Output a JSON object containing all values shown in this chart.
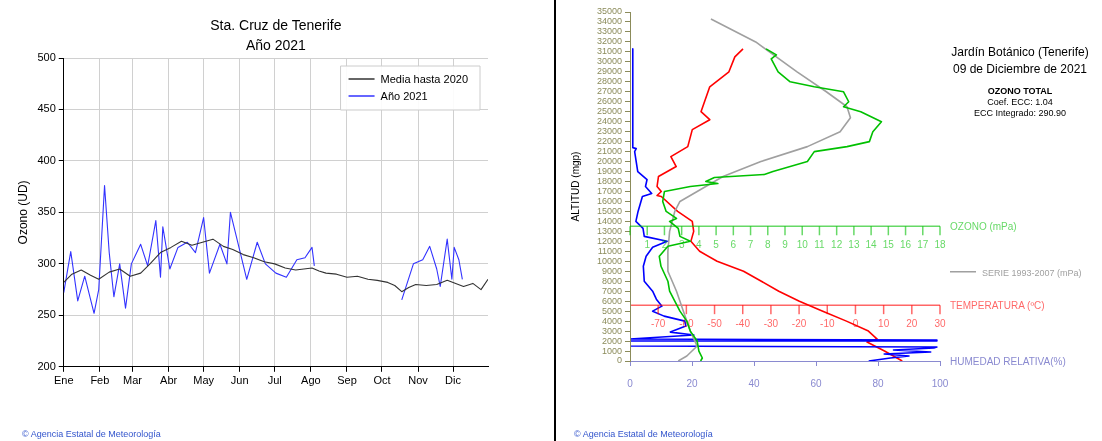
{
  "chart_data": [
    {
      "type": "line",
      "title": "Sta. Cruz de Tenerife",
      "subtitle": "Año 2021",
      "ylabel": "Ozono (UD)",
      "xlim": [
        "--01-01",
        "--12-31"
      ],
      "xticks": [
        {
          "value": "--01-01",
          "label": "Ene"
        },
        {
          "value": "--02-01",
          "label": "Feb"
        },
        {
          "value": "--03-01",
          "label": "Mar"
        },
        {
          "value": "--04-01",
          "label": "Abr"
        },
        {
          "value": "--05-01",
          "label": "May"
        },
        {
          "value": "--06-01",
          "label": "Jun"
        },
        {
          "value": "--07-01",
          "label": "Jul"
        },
        {
          "value": "--08-01",
          "label": "Ago"
        },
        {
          "value": "--09-01",
          "label": "Sep"
        },
        {
          "value": "--10-01",
          "label": "Oct"
        },
        {
          "value": "--11-01",
          "label": "Nov"
        },
        {
          "value": "--12-01",
          "label": "Dic"
        }
      ],
      "ylim": [
        200,
        500
      ],
      "yticks": [
        200,
        250,
        300,
        350,
        400,
        450,
        500
      ],
      "grid": true,
      "legend": "top right",
      "marker": "none",
      "series": [
        {
          "name": "Media hasta 2020",
          "color": "#333333",
          "x": [
            "--01-01",
            "--01-08",
            "--01-16",
            "--01-24",
            "--01-31",
            "--02-09",
            "--02-18",
            "--02-27",
            "--03-08",
            "--03-16",
            "--03-25",
            "--04-03",
            "--04-12",
            "--04-21",
            "--04-30",
            "--05-09",
            "--05-18",
            "--05-26",
            "--06-04",
            "--06-13",
            "--06-22",
            "--07-01",
            "--07-10",
            "--07-19",
            "--08-02",
            "--08-08",
            "--08-14",
            "--08-23",
            "--09-01",
            "--09-10",
            "--09-19",
            "--09-27",
            "--10-06",
            "--10-12",
            "--10-18",
            "--10-24",
            "--10-30",
            "--11-08",
            "--11-17",
            "--11-26",
            "--12-10",
            "--12-18",
            "--12-25",
            "--12-31"
          ],
          "values": [
            282,
            290,
            294,
            289,
            285,
            292,
            295,
            288,
            291,
            300,
            311,
            316,
            322,
            318,
            321,
            324,
            317,
            314,
            309,
            306,
            302,
            300,
            296,
            294,
            296,
            293,
            291,
            290,
            287,
            288,
            285,
            284,
            282,
            279,
            273,
            277,
            280,
            279,
            280,
            284,
            278,
            281,
            275,
            285
          ]
        },
        {
          "name": "Año 2021",
          "color": "#3333ff",
          "x": [
            "--01-01",
            "--01-07",
            "--01-13",
            "--01-19",
            "--01-27",
            "--01-31",
            "--02-05",
            "--02-09",
            "--02-13",
            "--02-18",
            "--02-23",
            "--02-28",
            "--03-08",
            "--03-14",
            "--03-21",
            "--03-25",
            "--03-27",
            "--04-02",
            "--04-09",
            "--04-17",
            "--04-24",
            "--05-01",
            "--05-06",
            "--05-15",
            "--05-21",
            "--05-24",
            "--05-29",
            "--06-07",
            "--06-16",
            "--06-23",
            "--07-02",
            "--07-11",
            "--07-20",
            "--07-27",
            "--08-02",
            "--08-04",
            "--09-07",
            "--10-18",
            "--10-28",
            "--11-05",
            "--11-11",
            "--11-17",
            "--11-20",
            "--11-26",
            "--11-30",
            "--12-02",
            "--12-06",
            "--12-09"
          ],
          "values": [
            272,
            312,
            264,
            288,
            252,
            275,
            376,
            311,
            268,
            300,
            257,
            300,
            319,
            298,
            342,
            287,
            336,
            295,
            316,
            321,
            311,
            345,
            291,
            319,
            300,
            350,
            327,
            285,
            321,
            300,
            291,
            287,
            304,
            306,
            316,
            298,
            null,
            265,
            300,
            304,
            317,
            295,
            278,
            324,
            285,
            316,
            304,
            285
          ]
        }
      ],
      "annotations": [
        "© Agencia Estatal de Meteorología"
      ]
    },
    {
      "type": "line",
      "ylabel": "ALTITUD (mgp)",
      "xlabel": "HUMEDAD RELATIVA(%)",
      "x2label": "TEMPERATURA (ºC)",
      "xlim": [
        0,
        100
      ],
      "xticks": [
        0,
        20,
        40,
        60,
        80,
        100
      ],
      "x2lim": [
        -80,
        30
      ],
      "x2ticks": [
        -70,
        -60,
        -50,
        -40,
        -30,
        -20,
        -10,
        0,
        10,
        20,
        30
      ],
      "ylim": [
        0,
        35000
      ],
      "yticks": [
        0,
        1000,
        2000,
        3000,
        4000,
        5000,
        6000,
        7000,
        8000,
        9000,
        10000,
        11000,
        12000,
        13000,
        14000,
        15000,
        16000,
        17000,
        18000,
        19000,
        20000,
        21000,
        22000,
        23000,
        24000,
        25000,
        26000,
        27000,
        28000,
        29000,
        30000,
        31000,
        32000,
        33000,
        34000,
        35000
      ],
      "grid": false,
      "marker": "none",
      "series": [
        {
          "color": "#0000ff",
          "x": [
            0.9,
            0.9,
            2,
            1.5,
            2.5,
            5.5,
            5,
            7,
            4,
            2.6,
            1.9,
            4.2,
            4.6,
            12,
            7.3,
            5.2,
            4.3,
            4.6,
            7.3,
            8.5,
            10.3,
            7.3,
            11,
            17.7,
            18,
            13,
            20.6,
            0,
            99,
            99,
            0,
            0,
            99,
            98,
            85,
            97,
            82,
            90,
            84,
            77
          ],
          "values": [
            31300,
            21400,
            21300,
            21000,
            19000,
            18200,
            17500,
            16800,
            16500,
            15000,
            14000,
            13300,
            12500,
            12000,
            11400,
            10500,
            9500,
            8000,
            7000,
            6200,
            5500,
            5000,
            4500,
            4000,
            3500,
            2900,
            2600,
            2200,
            2100,
            2000,
            2000,
            1500,
            1400,
            1300,
            1100,
            900,
            700,
            500,
            300,
            0
          ]
        },
        {
          "color": "#ff0000",
          "axis": "x2",
          "x": [
            -39.9,
            -42.8,
            -44.9,
            -51.7,
            -54.8,
            -51.7,
            -57.9,
            -59.5,
            -65.5,
            -63.6,
            -69.9,
            -70.4,
            -68.9,
            -70.4,
            -68.9,
            -63.1,
            -57.9,
            -57.4,
            -58.4,
            -55.3,
            -49.1,
            -39.7,
            -33.4,
            -27.2,
            -19.9,
            -11.6,
            -3.2,
            4.6,
            7.7,
            4.1,
            10.3,
            16.6
          ],
          "values": [
            31300,
            30500,
            29000,
            27500,
            25000,
            24200,
            23200,
            21500,
            20500,
            19500,
            18500,
            17500,
            17000,
            16600,
            16500,
            15000,
            14000,
            13000,
            12000,
            11000,
            10000,
            9000,
            8000,
            7000,
            6000,
            5000,
            4000,
            3000,
            2200,
            1900,
            1000,
            0
          ]
        }
      ],
      "annotations": [
        "© Agencia Estatal de Meteorología"
      ]
    },
    {
      "type": "line",
      "xlabel": "OZONO (mPa)",
      "xlim": [
        0,
        18
      ],
      "xticks": [
        {
          "value": 0,
          "label": null
        },
        1,
        2,
        3,
        4,
        5,
        6,
        7,
        8,
        9,
        10,
        11,
        12,
        13,
        14,
        15,
        16,
        17,
        18
      ],
      "ylim": [
        0,
        35000
      ],
      "tick_labels": "x",
      "grid": false,
      "legend": "right",
      "marker": "none",
      "series": [
        {
          "color": "#00c000",
          "x": [
            7.9,
            8.5,
            8.2,
            8.6,
            9.3,
            10.7,
            12.4,
            12.7,
            12.4,
            13.4,
            14.6,
            14.1,
            13.9,
            12.6,
            10.7,
            10.3,
            8.3,
            7.8,
            4.9,
            4.4,
            5.1,
            3.5,
            2,
            1.9,
            2.1,
            2.7,
            2.3,
            2.8,
            2.9,
            3.5,
            2.2,
            1.7,
            1.8,
            2.2,
            2.3,
            2.6,
            2.9,
            3.3,
            3.5,
            3.9,
            4,
            4.2,
            4.1
          ],
          "values": [
            31300,
            30700,
            30300,
            29000,
            28000,
            27500,
            27000,
            26000,
            25500,
            25000,
            24000,
            23000,
            22000,
            21500,
            21000,
            20000,
            19000,
            18700,
            18400,
            18000,
            17800,
            17500,
            17000,
            16000,
            15000,
            14300,
            14000,
            13300,
            12500,
            12000,
            11500,
            10500,
            9500,
            8000,
            7000,
            6000,
            5000,
            4000,
            3000,
            2000,
            1000,
            300,
            0
          ]
        },
        {
          "name": "SERIE 1993-2007 (mPa)",
          "color": "#a0a0a0",
          "x": [
            4.7,
            7.3,
            9.7,
            11.4,
            12.6,
            12.8,
            12.2,
            10.3,
            7.6,
            5.4,
            3.9,
            2.9,
            2.6,
            2.3,
            2.2,
            2.2,
            2.7,
            3.1,
            3.5,
            3.9,
            3.3,
            2.8
          ],
          "values": [
            34300,
            32000,
            29000,
            27000,
            25500,
            24400,
            23000,
            21500,
            20000,
            18500,
            17000,
            16000,
            15000,
            13000,
            11000,
            9000,
            7000,
            5000,
            3000,
            1500,
            500,
            0
          ]
        }
      ]
    },
    {
      "type": "other",
      "title": "Jardín Botánico (Tenerife)",
      "subtitle": "09 de Diciembre de 2021",
      "annotations": [
        "OZONO TOTAL",
        "Coef. ECC: 1.04",
        "ECC Integrado: 290.90"
      ]
    }
  ]
}
